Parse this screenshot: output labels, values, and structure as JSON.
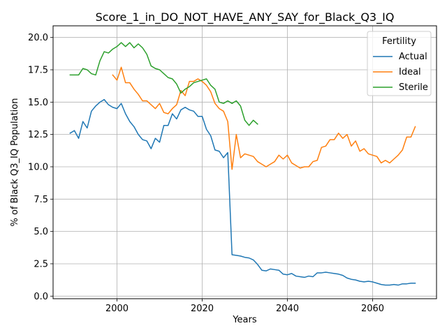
{
  "chart_data": {
    "type": "line",
    "title": "Score_1_in_DO_NOT_HAVE_ANY_SAY_for_Black_Q3_IQ",
    "xlabel": "Years",
    "ylabel": "% of Black Q3_IQ Population",
    "xlim": [
      1985,
      2075
    ],
    "ylim": [
      -0.2,
      20.9
    ],
    "xticks": [
      2000,
      2020,
      2040,
      2060
    ],
    "yticks": [
      0.0,
      2.5,
      5.0,
      7.5,
      10.0,
      12.5,
      15.0,
      17.5,
      20.0
    ],
    "grid": true,
    "legend": {
      "title": "Fertility",
      "position": "top-right"
    },
    "series": [
      {
        "name": "Actual",
        "color": "#1f77b4",
        "start_year": 1989,
        "values": [
          12.6,
          12.8,
          12.2,
          13.5,
          13.0,
          14.3,
          14.7,
          15.0,
          15.2,
          14.8,
          14.6,
          14.5,
          14.9,
          14.1,
          13.5,
          13.1,
          12.5,
          12.1,
          12.0,
          11.4,
          12.2,
          11.9,
          13.2,
          13.2,
          14.1,
          13.7,
          14.4,
          14.6,
          14.4,
          14.3,
          13.9,
          13.9,
          12.9,
          12.4,
          11.3,
          11.2,
          10.7,
          11.1,
          3.2,
          3.15,
          3.1,
          3.0,
          2.95,
          2.8,
          2.45,
          2.0,
          1.95,
          2.1,
          2.05,
          2.0,
          1.7,
          1.65,
          1.75,
          1.55,
          1.5,
          1.45,
          1.55,
          1.5,
          1.8,
          1.8,
          1.85,
          1.8,
          1.75,
          1.7,
          1.6,
          1.4,
          1.3,
          1.25,
          1.15,
          1.1,
          1.15,
          1.1,
          1.0,
          0.9,
          0.85,
          0.85,
          0.9,
          0.85,
          0.95,
          0.95,
          1.0,
          1.0
        ]
      },
      {
        "name": "Ideal",
        "color": "#ff7f0e",
        "start_year": 1999,
        "values": [
          17.1,
          16.7,
          17.7,
          16.5,
          16.5,
          16.0,
          15.6,
          15.1,
          15.1,
          14.8,
          14.5,
          14.9,
          14.2,
          14.1,
          14.5,
          14.8,
          15.9,
          15.5,
          16.6,
          16.6,
          16.8,
          16.6,
          16.3,
          15.8,
          14.9,
          14.5,
          14.3,
          13.5,
          9.8,
          12.5,
          10.7,
          11.0,
          10.9,
          10.8,
          10.4,
          10.2,
          10.0,
          10.2,
          10.4,
          10.9,
          10.6,
          10.9,
          10.3,
          10.1,
          9.9,
          10.0,
          10.0,
          10.4,
          10.5,
          11.5,
          11.6,
          12.1,
          12.1,
          12.6,
          12.2,
          12.5,
          11.6,
          12.0,
          11.2,
          11.4,
          11.0,
          10.9,
          10.8,
          10.3,
          10.5,
          10.3,
          10.6,
          10.9,
          11.3,
          12.3,
          12.3,
          13.1
        ]
      },
      {
        "name": "Sterile",
        "color": "#2ca02c",
        "start_year": 1989,
        "values": [
          17.1,
          17.1,
          17.1,
          17.6,
          17.5,
          17.2,
          17.1,
          18.2,
          18.9,
          18.8,
          19.1,
          19.3,
          19.6,
          19.3,
          19.6,
          19.2,
          19.5,
          19.2,
          18.7,
          17.8,
          17.6,
          17.5,
          17.2,
          16.9,
          16.8,
          16.4,
          15.7,
          16.0,
          16.2,
          16.5,
          16.6,
          16.7,
          16.8,
          16.3,
          16.0,
          15.0,
          14.9,
          15.1,
          14.9,
          15.1,
          14.7,
          13.6,
          13.2,
          13.6,
          13.3
        ]
      }
    ]
  }
}
